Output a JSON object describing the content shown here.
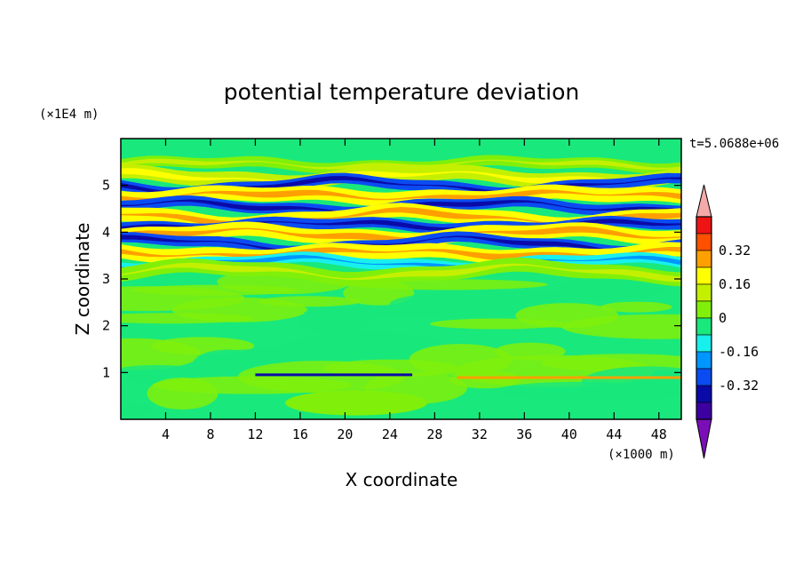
{
  "chart_data": {
    "type": "heatmap",
    "subtype": "filled-contour",
    "title": "potential temperature deviation",
    "xlabel": "X coordinate",
    "ylabel": "Z coordinate",
    "x_unit_label": "(×1000 m)",
    "y_unit_label": "(×1E4 m)",
    "time_label": "t=5.0688e+06",
    "xlim": [
      0,
      50
    ],
    "ylim": [
      0,
      6
    ],
    "x_ticks": [
      4,
      8,
      12,
      16,
      20,
      24,
      28,
      32,
      36,
      40,
      44,
      48
    ],
    "y_ticks": [
      1,
      2,
      3,
      4,
      5
    ],
    "colorbar": {
      "levels": [
        -0.48,
        -0.4,
        -0.32,
        -0.24,
        -0.16,
        -0.08,
        0,
        0.08,
        0.16,
        0.24,
        0.32,
        0.4,
        0.48
      ],
      "labeled_levels": [
        "0.32",
        "0.16",
        "0",
        "-0.16",
        "-0.32"
      ],
      "colors": [
        "#7a0fb8",
        "#3c00a0",
        "#0a0aa8",
        "#0a4cf2",
        "#0096ff",
        "#18f0ee",
        "#19e87c",
        "#80f00a",
        "#c4f000",
        "#ffff00",
        "#ffa000",
        "#ff5000",
        "#ee1414",
        "#f5aaaa"
      ],
      "extend": "both"
    },
    "bands": [
      {
        "z": 5.45,
        "level": 1
      },
      {
        "z": 5.18,
        "level": 2
      },
      {
        "z": 5.0,
        "level": -3
      },
      {
        "z": 4.78,
        "level": 3
      },
      {
        "z": 4.55,
        "level": -3
      },
      {
        "z": 4.32,
        "level": 3
      },
      {
        "z": 4.15,
        "level": -3
      },
      {
        "z": 3.95,
        "level": 3
      },
      {
        "z": 3.75,
        "level": -3
      },
      {
        "z": 3.55,
        "level": 3
      },
      {
        "z": 3.35,
        "level": -1
      },
      {
        "z": 3.15,
        "level": 1
      }
    ],
    "grid": false,
    "legend": "right colorbar"
  }
}
